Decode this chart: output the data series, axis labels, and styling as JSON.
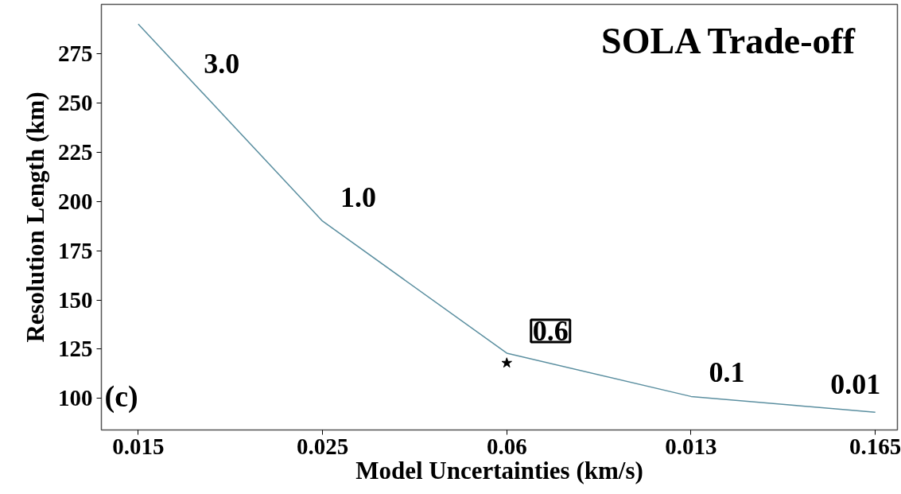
{
  "chart_data": {
    "type": "line",
    "title": "SOLA Trade-off",
    "xlabel": "Model Uncertainties (km/s)",
    "ylabel": "Resolution Length (km)",
    "categories": [
      "0.015",
      "0.025",
      "0.06",
      "0.013",
      "0.165"
    ],
    "series": [
      {
        "color": "#5b8fa0",
        "values": [
          290,
          190,
          123,
          101,
          93
        ]
      },
      {
        "type": "scatter",
        "color": "#000000",
        "marker": "star",
        "x": [
          "0.06"
        ],
        "values": [
          118
        ]
      }
    ],
    "ylim": [
      84,
      300
    ],
    "yticks": [
      100,
      125,
      150,
      175,
      200,
      225,
      250,
      275
    ],
    "grid": false,
    "annotations": [
      "3.0",
      "1.0",
      "0.6",
      "0.1",
      "0.01",
      "(c)"
    ]
  }
}
